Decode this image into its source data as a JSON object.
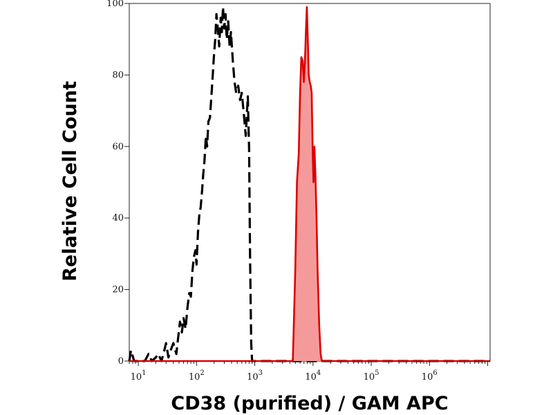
{
  "chart_data": {
    "type": "area",
    "title": "",
    "xlabel": "CD38 (purified) / GAM APC",
    "ylabel": "Relative Cell Count",
    "xscale": "log",
    "xlim": [
      7,
      11000000
    ],
    "ylim": [
      0,
      100
    ],
    "grid": false,
    "legend": "none",
    "x_ticks": [
      {
        "base": "10",
        "exp": "1",
        "value": 10
      },
      {
        "base": "10",
        "exp": "2",
        "value": 100
      },
      {
        "base": "10",
        "exp": "3",
        "value": 1000
      },
      {
        "base": "10",
        "exp": "4",
        "value": 10000
      },
      {
        "base": "10",
        "exp": "5",
        "value": 100000
      },
      {
        "base": "10",
        "exp": "6",
        "value": 1000000
      }
    ],
    "y_ticks": [
      0,
      20,
      40,
      60,
      80,
      100
    ],
    "series": [
      {
        "style": "dashed",
        "color": "#000000",
        "filled": false,
        "points": [
          [
            7,
            0
          ],
          [
            7.5,
            3
          ],
          [
            8.5,
            0
          ],
          [
            13,
            0
          ],
          [
            15,
            2
          ],
          [
            17,
            0
          ],
          [
            20,
            1
          ],
          [
            22,
            2
          ],
          [
            25,
            0
          ],
          [
            28,
            3
          ],
          [
            30,
            5
          ],
          [
            33,
            1
          ],
          [
            36,
            3
          ],
          [
            40,
            5
          ],
          [
            45,
            2
          ],
          [
            48,
            6
          ],
          [
            52,
            11
          ],
          [
            56,
            8
          ],
          [
            60,
            12
          ],
          [
            65,
            9
          ],
          [
            70,
            15
          ],
          [
            75,
            19
          ],
          [
            80,
            18
          ],
          [
            85,
            25
          ],
          [
            90,
            29
          ],
          [
            96,
            31
          ],
          [
            100,
            27
          ],
          [
            106,
            36
          ],
          [
            112,
            41
          ],
          [
            118,
            43
          ],
          [
            125,
            48
          ],
          [
            130,
            52
          ],
          [
            137,
            56
          ],
          [
            145,
            63
          ],
          [
            152,
            60
          ],
          [
            160,
            67
          ],
          [
            170,
            68
          ],
          [
            180,
            74
          ],
          [
            190,
            80
          ],
          [
            200,
            86
          ],
          [
            210,
            90
          ],
          [
            220,
            97
          ],
          [
            232,
            93
          ],
          [
            245,
            88
          ],
          [
            260,
            96
          ],
          [
            272,
            92
          ],
          [
            285,
            99
          ],
          [
            300,
            93
          ],
          [
            315,
            97
          ],
          [
            330,
            90
          ],
          [
            350,
            95
          ],
          [
            370,
            88
          ],
          [
            390,
            92
          ],
          [
            420,
            84
          ],
          [
            450,
            78
          ],
          [
            480,
            75
          ],
          [
            520,
            77
          ],
          [
            560,
            73
          ],
          [
            600,
            75
          ],
          [
            650,
            69
          ],
          [
            700,
            63
          ],
          [
            760,
            74
          ],
          [
            800,
            59
          ],
          [
            830,
            30
          ],
          [
            870,
            5
          ],
          [
            900,
            0
          ],
          [
            2000,
            0
          ],
          [
            100000,
            0
          ],
          [
            11000000,
            0
          ]
        ]
      },
      {
        "style": "solid",
        "color": "#dd0000",
        "fill": "#f59a9a",
        "filled": true,
        "points": [
          [
            7,
            0
          ],
          [
            4500,
            0
          ],
          [
            4950,
            25
          ],
          [
            5300,
            50
          ],
          [
            5700,
            58
          ],
          [
            6000,
            75
          ],
          [
            6300,
            85
          ],
          [
            6650,
            84
          ],
          [
            6950,
            78
          ],
          [
            7250,
            83
          ],
          [
            7550,
            92
          ],
          [
            7850,
            99
          ],
          [
            8150,
            90
          ],
          [
            8450,
            80
          ],
          [
            8800,
            78
          ],
          [
            9150,
            77
          ],
          [
            9500,
            75
          ],
          [
            9900,
            58
          ],
          [
            10200,
            50
          ],
          [
            10600,
            60
          ],
          [
            11000,
            52
          ],
          [
            11500,
            40
          ],
          [
            12000,
            25
          ],
          [
            12800,
            10
          ],
          [
            13500,
            2
          ],
          [
            14200,
            0
          ],
          [
            11000000,
            0
          ]
        ]
      }
    ]
  }
}
